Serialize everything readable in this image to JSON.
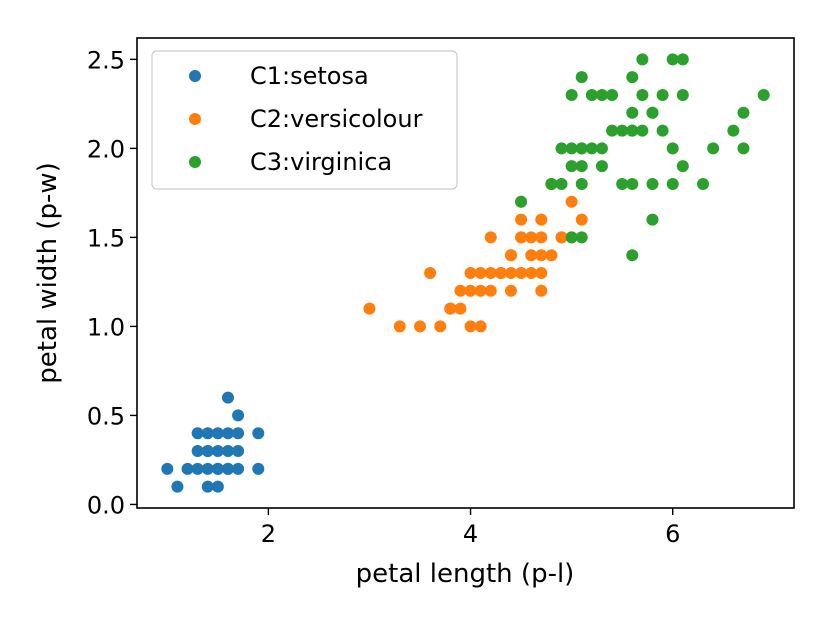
{
  "chart_data": {
    "type": "scatter",
    "title": "",
    "xlabel": "petal length (p-l)",
    "ylabel": "petal width (p-w)",
    "xlim": [
      0.7,
      7.2
    ],
    "ylim": [
      -0.02,
      2.62
    ],
    "xticks": [
      2,
      4,
      6
    ],
    "yticks": [
      0.0,
      0.5,
      1.0,
      1.5,
      2.0,
      2.5
    ],
    "xtick_labels": [
      "2",
      "4",
      "6"
    ],
    "ytick_labels": [
      "0.0",
      "0.5",
      "1.0",
      "1.5",
      "2.0",
      "2.5"
    ],
    "grid": false,
    "legend_position": "top-left",
    "series": [
      {
        "name": "C1:setosa",
        "color": "#1f77b4",
        "x": [
          1.0,
          1.1,
          1.2,
          1.3,
          1.4,
          1.5,
          1.6,
          1.7,
          1.9,
          1.3,
          1.4,
          1.5,
          1.6,
          1.7,
          1.9,
          1.3,
          1.4,
          1.5,
          1.6,
          1.7,
          1.4,
          1.5,
          1.6,
          1.7,
          1.6,
          1.4,
          1.5
        ],
        "y": [
          0.2,
          0.1,
          0.2,
          0.2,
          0.2,
          0.2,
          0.2,
          0.2,
          0.2,
          0.3,
          0.3,
          0.3,
          0.3,
          0.3,
          0.4,
          0.4,
          0.4,
          0.4,
          0.4,
          0.5,
          0.1,
          0.1,
          0.6,
          0.4,
          0.2,
          0.3,
          0.2
        ]
      },
      {
        "name": "C2:versicolour",
        "color": "#ff7f0e",
        "x": [
          3.0,
          3.3,
          3.5,
          3.7,
          3.8,
          3.9,
          4.0,
          4.1,
          3.6,
          3.9,
          4.0,
          4.1,
          4.2,
          4.3,
          4.4,
          4.5,
          4.6,
          4.7,
          4.2,
          4.4,
          4.5,
          4.6,
          4.7,
          4.8,
          4.9,
          4.5,
          4.6,
          4.7,
          4.8,
          4.4,
          4.5,
          4.7,
          4.9,
          5.0,
          5.1,
          4.5,
          4.8,
          5.0,
          4.1,
          4.2,
          4.4,
          3.8,
          4.7,
          4.0,
          4.3
        ],
        "y": [
          1.1,
          1.0,
          1.0,
          1.0,
          1.1,
          1.1,
          1.0,
          1.0,
          1.3,
          1.2,
          1.3,
          1.3,
          1.3,
          1.3,
          1.3,
          1.3,
          1.3,
          1.3,
          1.5,
          1.4,
          1.5,
          1.5,
          1.4,
          1.4,
          1.5,
          1.6,
          1.4,
          1.6,
          1.8,
          1.2,
          1.7,
          1.5,
          1.5,
          1.7,
          1.6,
          1.5,
          1.8,
          1.5,
          1.2,
          1.2,
          1.4,
          1.1,
          1.2,
          1.2,
          1.3
        ]
      },
      {
        "name": "C3:virginica",
        "color": "#2ca02c",
        "x": [
          4.5,
          4.8,
          4.9,
          5.0,
          5.1,
          5.0,
          5.1,
          4.9,
          5.0,
          5.1,
          5.0,
          5.1,
          5.2,
          5.3,
          5.4,
          5.2,
          5.1,
          5.5,
          5.6,
          5.7,
          5.8,
          5.6,
          5.7,
          5.6,
          5.9,
          6.0,
          6.1,
          6.0,
          6.1,
          5.7,
          5.9,
          5.1,
          5.3,
          5.5,
          5.6,
          5.8,
          5.6,
          5.8,
          6.0,
          6.3,
          6.1,
          6.4,
          6.6,
          6.7,
          6.7,
          6.9,
          5.8,
          5.6,
          5.4,
          5.3
        ],
        "y": [
          1.7,
          1.8,
          1.8,
          1.9,
          1.9,
          2.0,
          2.0,
          2.0,
          1.5,
          1.5,
          2.3,
          2.4,
          2.3,
          2.3,
          2.3,
          2.0,
          1.8,
          1.8,
          1.8,
          2.5,
          2.2,
          2.2,
          2.3,
          2.4,
          2.3,
          2.5,
          2.5,
          1.8,
          1.9,
          2.1,
          2.1,
          2.0,
          1.9,
          2.1,
          2.1,
          1.8,
          1.4,
          1.6,
          2.0,
          1.8,
          2.3,
          2.0,
          2.1,
          2.0,
          2.2,
          2.3,
          2.2,
          2.1,
          2.1,
          2.0
        ]
      }
    ]
  }
}
